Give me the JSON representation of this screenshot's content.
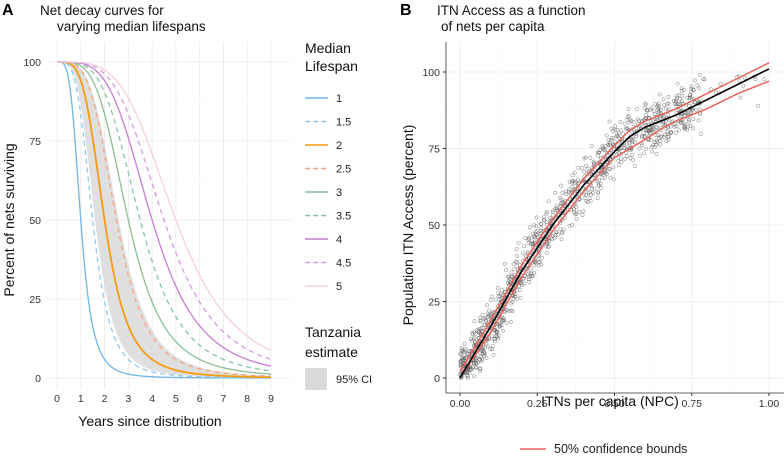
{
  "chart_data": [
    {
      "panel": "A",
      "type": "line",
      "title": "Net decay curves for\nvarying median lifespans",
      "xlabel": "Years since distribution",
      "ylabel": "Percent of nets surviving",
      "xlim": [
        0,
        9
      ],
      "ylim": [
        0,
        100
      ],
      "x_ticks": [
        "0",
        "1",
        "2",
        "3",
        "4",
        "5",
        "6",
        "7",
        "8",
        "9"
      ],
      "y_ticks": [
        "0",
        "25",
        "50",
        "75",
        "100"
      ],
      "decay_model": "100 / (1 + (t/m)^k) style sigmoid, k = 4",
      "legend_title": "Median\nLifespan",
      "series": [
        {
          "name": "1",
          "median": 1,
          "color": "#6fb6e8",
          "dash": "solid"
        },
        {
          "name": "1.5",
          "median": 1.5,
          "color": "#8ec8ee",
          "dash": "dashed"
        },
        {
          "name": "2",
          "median": 2,
          "color": "#f39c12",
          "dash": "solid"
        },
        {
          "name": "2.5",
          "median": 2.5,
          "color": "#f4a582",
          "dash": "dashed"
        },
        {
          "name": "3",
          "median": 3,
          "color": "#8cbf99",
          "dash": "solid"
        },
        {
          "name": "3.5",
          "median": 3.5,
          "color": "#88c4a5",
          "dash": "dashed"
        },
        {
          "name": "4",
          "median": 4,
          "color": "#c77dd6",
          "dash": "solid"
        },
        {
          "name": "4.5",
          "median": 4.5,
          "color": "#d39be0",
          "dash": "dashed"
        },
        {
          "name": "5",
          "median": 5,
          "color": "#f7cfe0",
          "dash": "solid"
        }
      ],
      "ci_band": {
        "legend_title": "Tanzania\nestimate",
        "label": "95% CI",
        "median_low": 1.6,
        "median_high": 2.6,
        "color": "#d9d9d9"
      }
    },
    {
      "panel": "B",
      "type": "scatter",
      "title": "ITN Access as a function\nof nets per capita",
      "xlabel": "ITNs per capita (NPC)",
      "ylabel": "Population ITN Access (percent)",
      "xlim": [
        0,
        1
      ],
      "ylim": [
        0,
        100
      ],
      "x_ticks": [
        "0.00",
        "0.25",
        "0.50",
        "0.75",
        "1.00"
      ],
      "y_ticks": [
        "0",
        "25",
        "50",
        "75",
        "100"
      ],
      "fit_line": {
        "x": [
          0,
          0.1,
          0.2,
          0.3,
          0.4,
          0.5,
          0.55,
          0.6,
          0.7,
          0.8,
          0.9,
          1.0
        ],
        "y": [
          0,
          17,
          35,
          50,
          63,
          74,
          79,
          82,
          86,
          91,
          96,
          101
        ]
      },
      "upper_bound": {
        "x": [
          0,
          0.1,
          0.2,
          0.3,
          0.4,
          0.5,
          0.55,
          0.6,
          0.7,
          0.8,
          0.9,
          1.0
        ],
        "y": [
          2,
          19,
          37,
          52,
          65,
          76,
          81,
          84,
          88,
          93,
          98,
          103
        ]
      },
      "lower_bound": {
        "x": [
          0,
          0.1,
          0.2,
          0.3,
          0.4,
          0.5,
          0.6,
          0.66,
          0.7,
          0.8,
          0.9,
          1.0
        ],
        "y": [
          0,
          15,
          33,
          48,
          61,
          72,
          78,
          82,
          84,
          88,
          93,
          97
        ]
      },
      "scatter_note": "approx. 1200 survey points clustered around the fit line",
      "legend_label": "50% confidence bounds",
      "bound_color": "#e8635a",
      "fit_color": "#000000"
    }
  ]
}
